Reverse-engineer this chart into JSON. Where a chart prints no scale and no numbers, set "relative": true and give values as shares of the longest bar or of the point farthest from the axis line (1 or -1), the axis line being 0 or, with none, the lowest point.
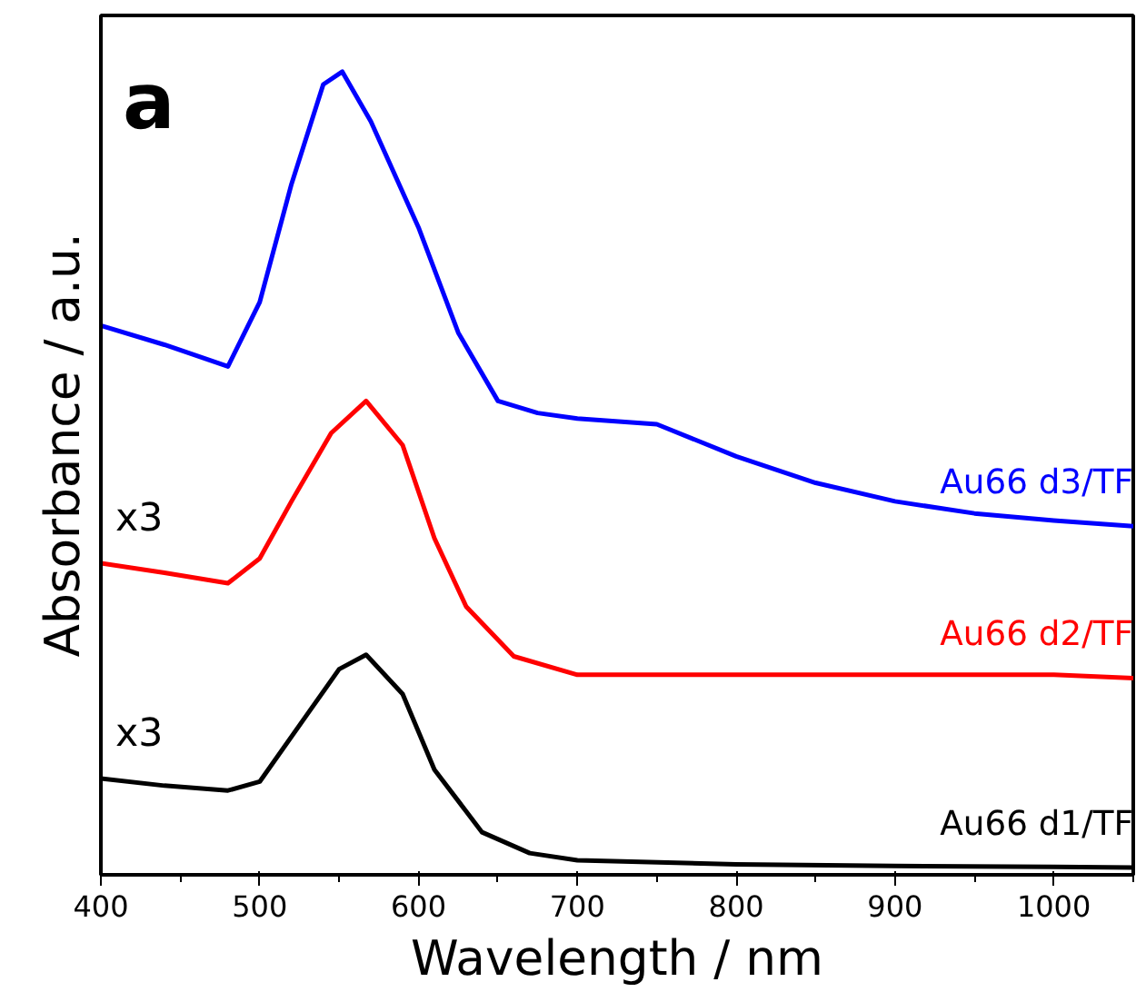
{
  "chart_data": {
    "type": "line",
    "relative": true,
    "xlabel": "Wavelength / nm",
    "ylabel": "Absorbance / a.u.",
    "x": [
      400,
      440,
      480,
      500,
      520,
      540,
      552,
      570,
      600,
      625,
      650,
      675,
      700,
      750,
      800,
      850,
      900,
      950,
      1000,
      1050
    ],
    "xlim": [
      400,
      1050
    ],
    "xticks": [
      400,
      500,
      600,
      700,
      800,
      900,
      1000
    ],
    "series": [
      {
        "name": "Au66 d3/TF",
        "color": "#0000ff",
        "values": [
          0.684,
          0.66,
          0.633,
          0.713,
          0.86,
          0.984,
          1.0,
          0.938,
          0.806,
          0.675,
          0.59,
          0.575,
          0.568,
          0.561,
          0.521,
          0.488,
          0.465,
          0.45,
          0.441,
          0.434
        ]
      },
      {
        "name": "Au66 d2/TF",
        "color": "#ff0000",
        "x": [
          400,
          440,
          480,
          500,
          520,
          545,
          567,
          590,
          610,
          630,
          660,
          700,
          800,
          900,
          1000,
          1050
        ],
        "values": [
          0.388,
          0.376,
          0.363,
          0.394,
          0.465,
          0.55,
          0.59,
          0.535,
          0.419,
          0.334,
          0.272,
          0.249,
          0.249,
          0.249,
          0.249,
          0.245
        ]
      },
      {
        "name": "Au66 d1/TF",
        "color": "#000000",
        "x": [
          400,
          440,
          480,
          500,
          530,
          550,
          567,
          590,
          610,
          640,
          670,
          700,
          800,
          900,
          1000,
          1050
        ],
        "values": [
          0.12,
          0.111,
          0.105,
          0.116,
          0.2,
          0.256,
          0.274,
          0.225,
          0.131,
          0.053,
          0.027,
          0.018,
          0.013,
          0.011,
          0.01,
          0.009
        ]
      }
    ],
    "annotations": [
      "a",
      "x3",
      "x3"
    ],
    "legend": false,
    "grid": false,
    "marker": "none",
    "line_style": "solid"
  }
}
